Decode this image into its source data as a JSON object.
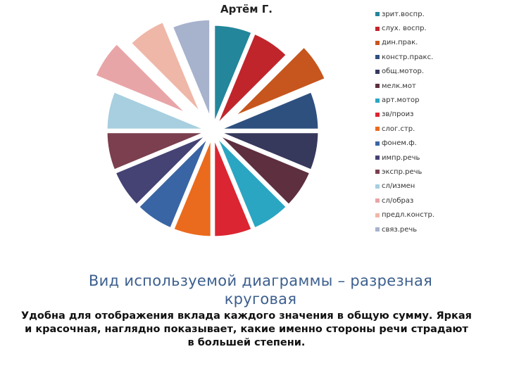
{
  "chart_data": {
    "type": "pie",
    "title": "Артём Г.",
    "exploded": true,
    "legend_position": "right",
    "series": [
      {
        "name": "зрит.воспр.",
        "value": 1,
        "color": "#23869b"
      },
      {
        "name": "слух. воспр.",
        "value": 1,
        "color": "#c1252c"
      },
      {
        "name": "дин.прак.",
        "value": 1,
        "color": "#c6561d"
      },
      {
        "name": "констр.пракс.",
        "value": 1,
        "color": "#2e507f"
      },
      {
        "name": "общ.мотор.",
        "value": 1,
        "color": "#36385c"
      },
      {
        "name": "мелк.мот",
        "value": 1,
        "color": "#5e2f3f"
      },
      {
        "name": "арт.мотор",
        "value": 1,
        "color": "#2aa6c3"
      },
      {
        "name": "зв/произ",
        "value": 1,
        "color": "#dc2532"
      },
      {
        "name": "слог.стр.",
        "value": 1,
        "color": "#ea6b1e"
      },
      {
        "name": "фонем.ф.",
        "value": 1,
        "color": "#3a65a4"
      },
      {
        "name": "импр.речь",
        "value": 1,
        "color": "#454274"
      },
      {
        "name": "экспр.речь",
        "value": 1,
        "color": "#7b3f4f"
      },
      {
        "name": "сл/измен",
        "value": 1,
        "color": "#a7cfdf"
      },
      {
        "name": "сл/образ",
        "value": 1,
        "color": "#e8a5a8"
      },
      {
        "name": "предл.констр.",
        "value": 1,
        "color": "#efb7a8"
      },
      {
        "name": "связ.речь",
        "value": 1,
        "color": "#a7b2cd"
      }
    ]
  },
  "caption": "Вид используемой диаграммы – разрезная круговая",
  "description": "Удобна для отображения вклада каждого значения в общую сумму. Яркая и красочная, наглядно показывает, какие именно стороны речи страдают в большей степени."
}
